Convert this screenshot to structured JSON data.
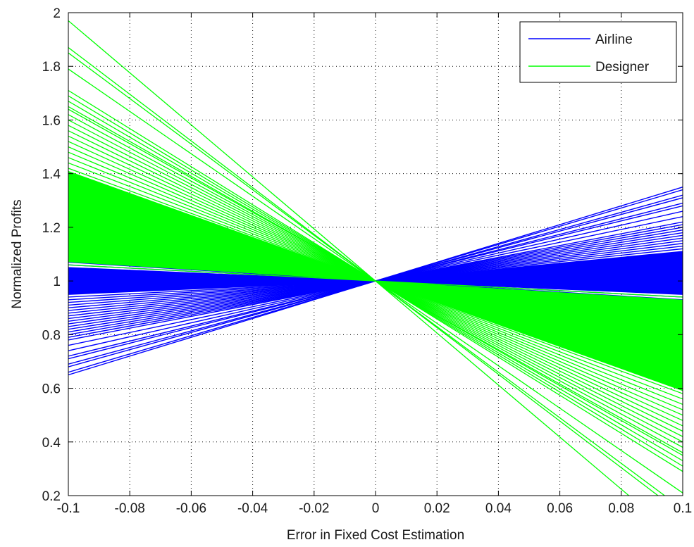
{
  "chart_data": {
    "type": "line",
    "title": "",
    "xlabel": "Error in Fixed Cost Estimation",
    "ylabel": "Normalized Profits",
    "xlim": [
      -0.1,
      0.1
    ],
    "ylim": [
      0.2,
      2
    ],
    "xticks": [
      -0.1,
      -0.08,
      -0.06,
      -0.04,
      -0.02,
      0,
      0.02,
      0.04,
      0.06,
      0.08,
      0.1
    ],
    "xtick_labels": [
      "-0.1",
      "-0.08",
      "-0.06",
      "-0.04",
      "-0.02",
      "0",
      "0.02",
      "0.04",
      "0.06",
      "0.08",
      "0.1"
    ],
    "yticks": [
      0.2,
      0.4,
      0.6,
      0.8,
      1,
      1.2,
      1.4,
      1.6,
      1.8,
      2
    ],
    "ytick_labels": [
      "0.2",
      "0.4",
      "0.6",
      "0.8",
      "1",
      "1.2",
      "1.4",
      "1.6",
      "1.8",
      "2"
    ],
    "grid": true,
    "grid_style": "dotted",
    "legend_position": "top-right",
    "pivot": [
      0,
      1
    ],
    "series": [
      {
        "name": "Airline",
        "color": "#0000ff",
        "description": "fan of straight lines through (0, 1); value at x = -0.1 listed (value at x = 0.1 is 2 - that)",
        "y_at_xmin": [
          0.65,
          0.66,
          0.68,
          0.69,
          0.71,
          0.72,
          0.74,
          0.76,
          0.78,
          0.79,
          0.8,
          0.81,
          0.82,
          0.83,
          0.84,
          0.85,
          0.86,
          0.87,
          0.88,
          0.89,
          0.9,
          0.91,
          0.92,
          0.93,
          0.94,
          0.95,
          0.96,
          0.97,
          0.98,
          0.99,
          1.0,
          1.01,
          1.02,
          1.03,
          1.04,
          1.05,
          1.06,
          1.07,
          1.1,
          1.14,
          1.18,
          1.21,
          1.23
        ]
      },
      {
        "name": "Designer",
        "color": "#00ff00",
        "description": "fan of straight lines through (0, 1); value at x = -0.1 listed",
        "y_at_xmin": [
          1.97,
          1.87,
          1.85,
          1.79,
          1.71,
          1.69,
          1.67,
          1.65,
          1.64,
          1.62,
          1.6,
          1.58,
          1.56,
          1.54,
          1.52,
          1.5,
          1.48,
          1.46,
          1.44,
          1.42,
          1.4,
          1.38,
          1.36,
          1.34,
          1.32,
          1.3,
          1.28,
          1.26,
          1.24,
          1.22,
          1.2,
          1.18,
          1.16,
          1.14,
          1.12,
          1.1,
          1.08,
          1.06
        ]
      }
    ]
  }
}
